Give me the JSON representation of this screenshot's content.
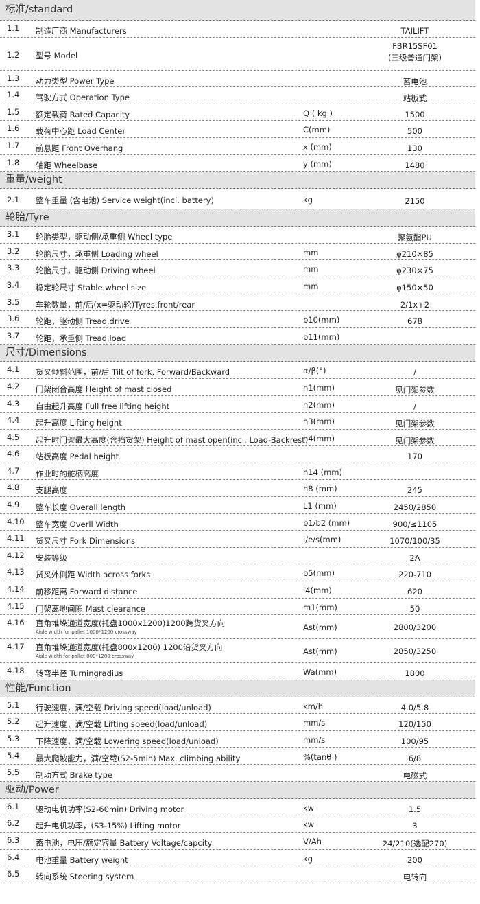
{
  "sections": [
    {
      "title": "标准/standard",
      "rows": [
        {
          "n": "1.1",
          "label": "制造厂商 Manufacturers",
          "unit": "",
          "value": "TAILIFT"
        },
        {
          "n": "1.2",
          "label": "型号 Model",
          "unit": "",
          "value": "FBR15SF01",
          "value2": "(三级普通门架)"
        },
        {
          "n": "1.3",
          "label": "动力类型 Power Type",
          "unit": "",
          "value": "蓄电池"
        },
        {
          "n": "1.4",
          "label": "驾驶方式 Operation Type",
          "unit": "",
          "value": "站板式"
        },
        {
          "n": "1.5",
          "label": "额定载荷 Rated Capacity",
          "unit": "Q ( kg )",
          "value": "1500"
        },
        {
          "n": "1.6",
          "label": "载荷中心距 Load Center",
          "unit": "C(mm)",
          "value": "500"
        },
        {
          "n": "1.7",
          "label": "前悬距 Front Overhang",
          "unit": "x (mm)",
          "value": "130"
        },
        {
          "n": "1.8",
          "label": "轴距 Wheelbase",
          "unit": "y (mm)",
          "value": "1480"
        }
      ]
    },
    {
      "title": "重量/weight",
      "rows": [
        {
          "n": "2.1",
          "label": "整车重量 (含电池) Service weight(incl. battery)",
          "unit": "kg",
          "value": "2150"
        }
      ]
    },
    {
      "title": "轮胎/Tyre",
      "rows": [
        {
          "n": "3.1",
          "label": "轮胎类型，驱动侧/承重侧  Wheel type",
          "unit": "",
          "value": "聚氨酯PU"
        },
        {
          "n": "3.2",
          "label": "轮胎尺寸，承重侧 Loading wheel",
          "unit": "mm",
          "value": "φ210×85"
        },
        {
          "n": "3.3",
          "label": "轮胎尺寸，驱动侧 Driving wheel",
          "unit": "mm",
          "value": "φ230×75"
        },
        {
          "n": "3.4",
          "label": "稳定轮尺寸 Stable wheel size",
          "unit": "mm",
          "value": "φ150×50"
        },
        {
          "n": "3.5",
          "label": "车轮数量，前/后(x=驱动轮)Tyres,front/rear",
          "unit": "",
          "value": "2/1x+2"
        },
        {
          "n": "3.6",
          "label": "轮距，驱动侧 Tread,drive",
          "unit": "b10(mm)",
          "value": "678"
        },
        {
          "n": "3.7",
          "label": "轮距，承重侧 Tread,load",
          "unit": "b11(mm)",
          "value": ""
        }
      ]
    },
    {
      "title": "尺寸/Dimensions",
      "rows": [
        {
          "n": "4.1",
          "label": "货叉倾斜范围，前/后  Tilt of fork, Forward/Backward",
          "unit": "α/β(°)",
          "value": "/"
        },
        {
          "n": "4.2",
          "label": "门架闭合高度 Height of mast closed",
          "unit": "h1(mm)",
          "value": "见门架参数"
        },
        {
          "n": "4.3",
          "label": "自由起升高度 Full free lifting height",
          "unit": "h2(mm)",
          "value": "/"
        },
        {
          "n": "4.4",
          "label": "起升高度 Lifting height",
          "unit": "h3(mm)",
          "value": "见门架参数"
        },
        {
          "n": "4.5",
          "label": "起升时门架最大高度(含挡货架) Height of mast open(incl. Load-Backrest)",
          "unit": "h4(mm)",
          "value": "见门架参数"
        },
        {
          "n": "4.6",
          "label": "站板高度  Pedal height",
          "unit": "",
          "value": "170"
        },
        {
          "n": "4.7",
          "label": "作业时的舵柄高度",
          "unit": "h14 (mm)",
          "value": ""
        },
        {
          "n": "4.8",
          "label": "支腿高度",
          "unit": "h8 (mm)",
          "value": "245"
        },
        {
          "n": "4.9",
          "label": "整车长度  Overall length",
          "unit": "L1 (mm)",
          "value": "2450/2850"
        },
        {
          "n": "4.10",
          "label": "整车宽度  Overll Width",
          "unit": "b1/b2 (mm)",
          "value": "900/≤1105"
        },
        {
          "n": "4.11",
          "label": "货叉尺寸  Fork Dimensions",
          "unit": "l/e/s(mm)",
          "value": "1070/100/35"
        },
        {
          "n": "4.12",
          "label": "安装等级",
          "unit": "",
          "value": "2A"
        },
        {
          "n": "4.13",
          "label": "货叉外侧距  Width across forks",
          "unit": "b5(mm)",
          "value": "220-710"
        },
        {
          "n": "4.14",
          "label": "前移距离 Forward distance",
          "unit": "l4(mm)",
          "value": "620"
        },
        {
          "n": "4.15",
          "label": "门架离地间隙  Mast clearance",
          "unit": "m1(mm)",
          "value": "50"
        },
        {
          "n": "4.16",
          "label": "直角堆垛通道宽度(托盘1000x1200)1200跨货叉方向",
          "sub": "Aisle width for pallet 1000*1200 crossway",
          "unit": "Ast(mm)",
          "value": "2800/3200"
        },
        {
          "n": "4.17",
          "label": "直角堆垛通道宽度(托盘800x1200) 1200沿货叉方向",
          "sub": "Aisle width for pallet 800*1200 crossway",
          "unit": "Ast(mm)",
          "value": "2850/3250"
        },
        {
          "n": "4.18",
          "label": "转弯半径  Turningradius",
          "unit": "Wa(mm)",
          "value": "1800"
        }
      ]
    },
    {
      "title": "性能/Function",
      "rows": [
        {
          "n": "5.1",
          "label": "行驶速度，满/空载  Driving speed(load/unload)",
          "unit": "km/h",
          "value": "4.0/5.8"
        },
        {
          "n": "5.2",
          "label": "起升速度，满/空载  Lifting speed(load/unload)",
          "unit": "mm/s",
          "value": "120/150"
        },
        {
          "n": "5.3",
          "label": "下降速度，满/空载  Lowering speed(load/unload)",
          "unit": "mm/s",
          "value": "100/95"
        },
        {
          "n": "5.4",
          "label": "最大爬坡能力，满/空载(S2-5min)  Max. climbing ability",
          "unit": "%(tanθ )",
          "value": "6/8"
        },
        {
          "n": "5.5",
          "label": "制动方式  Brake type",
          "unit": "",
          "value": "电磁式"
        }
      ]
    },
    {
      "title": "驱动/Power",
      "rows": [
        {
          "n": "6.1",
          "label": "驱动电机功率(S2-60min) Driving motor",
          "unit": "kw",
          "value": "1.5"
        },
        {
          "n": "6.2",
          "label": "起升电机功率，(S3-15%) Lifting motor",
          "unit": "kw",
          "value": "3"
        },
        {
          "n": "6.3",
          "label": "蓄电池，电压/额定容量 Battery Voltage/capcity",
          "unit": "V/Ah",
          "value": "24/210(选配270)"
        },
        {
          "n": "6.4",
          "label": "电池重量  Battery weight",
          "unit": "kg",
          "value": "200"
        },
        {
          "n": "6.5",
          "label": "转向系统  Steering system",
          "unit": "",
          "value": "电转向"
        }
      ]
    }
  ]
}
